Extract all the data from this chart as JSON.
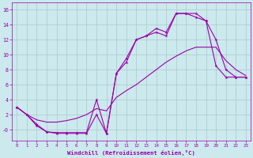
{
  "xlabel": "Windchill (Refroidissement éolien,°C)",
  "xlim": [
    -0.5,
    23.5
  ],
  "ylim": [
    -1.5,
    17.0
  ],
  "xticks": [
    0,
    1,
    2,
    3,
    4,
    5,
    6,
    7,
    8,
    9,
    10,
    11,
    12,
    13,
    14,
    15,
    16,
    17,
    18,
    19,
    20,
    21,
    22,
    23
  ],
  "yticks": [
    0,
    2,
    4,
    6,
    8,
    10,
    12,
    14,
    16
  ],
  "ytick_labels": [
    "-0",
    "2",
    "4",
    "6",
    "8",
    "10",
    "12",
    "14",
    "16"
  ],
  "bg_color": "#cceaed",
  "grid_color": "#aac8cc",
  "line_color": "#9900aa",
  "line1_x": [
    0,
    1,
    2,
    3,
    4,
    5,
    6,
    7,
    8,
    9,
    10,
    11,
    12,
    13,
    14,
    15,
    16,
    17,
    18,
    19,
    20,
    21,
    22,
    23
  ],
  "line1_y": [
    3.0,
    2.0,
    0.5,
    -0.3,
    -0.4,
    -0.4,
    -0.4,
    -0.4,
    4.0,
    -0.5,
    7.5,
    9.5,
    12.0,
    12.5,
    13.0,
    12.5,
    15.5,
    15.5,
    15.5,
    14.5,
    12.0,
    8.0,
    7.0,
    7.0
  ],
  "line2_x": [
    0,
    1,
    2,
    3,
    4,
    5,
    6,
    7,
    8,
    9,
    10,
    11,
    12,
    13,
    14,
    15,
    16,
    17,
    18,
    19,
    20,
    21,
    22,
    23
  ],
  "line2_y": [
    3.0,
    2.0,
    1.3,
    1.0,
    1.0,
    1.2,
    1.5,
    2.0,
    2.8,
    2.5,
    4.3,
    5.2,
    6.0,
    7.0,
    8.0,
    9.0,
    9.8,
    10.5,
    11.0,
    11.0,
    11.0,
    9.2,
    8.0,
    7.2
  ],
  "line3_x": [
    0,
    1,
    2,
    3,
    4,
    5,
    6,
    7,
    8,
    9,
    10,
    11,
    12,
    13,
    14,
    15,
    16,
    17,
    18,
    19,
    20,
    21,
    22,
    23
  ],
  "line3_y": [
    3.0,
    2.0,
    0.7,
    -0.3,
    -0.5,
    -0.5,
    -0.5,
    -0.5,
    2.0,
    -0.5,
    7.5,
    9.0,
    12.0,
    12.5,
    13.5,
    13.0,
    15.5,
    15.5,
    15.0,
    14.5,
    8.5,
    7.0,
    7.0,
    7.0
  ]
}
